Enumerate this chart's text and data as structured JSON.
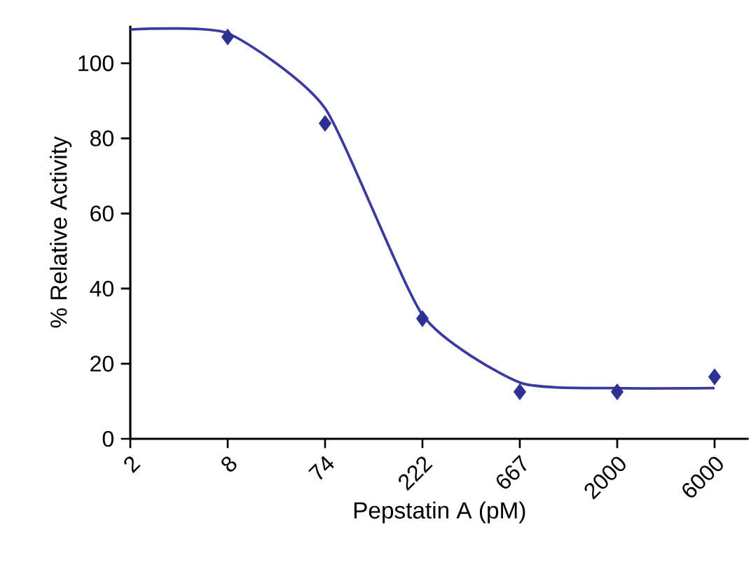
{
  "chart_data": {
    "type": "scatter",
    "xlabel": "Pepstatin A (pM)",
    "ylabel": "% Relative Activity",
    "categories": [
      "2",
      "8",
      "74",
      "222",
      "667",
      "2000",
      "6000"
    ],
    "ylim": [
      0,
      110
    ],
    "yticks": [
      0,
      20,
      40,
      60,
      80,
      100
    ],
    "series": [
      {
        "marker": "diamond",
        "color": "#2e3192",
        "values": [
          null,
          107,
          84,
          32,
          12.5,
          12.5,
          16.5
        ]
      },
      {
        "type": "line",
        "marker": "none",
        "line_style": "solid",
        "color": "#3b3b9e",
        "values": [
          109,
          108,
          88,
          33,
          15,
          13.5,
          13.5
        ]
      }
    ]
  }
}
